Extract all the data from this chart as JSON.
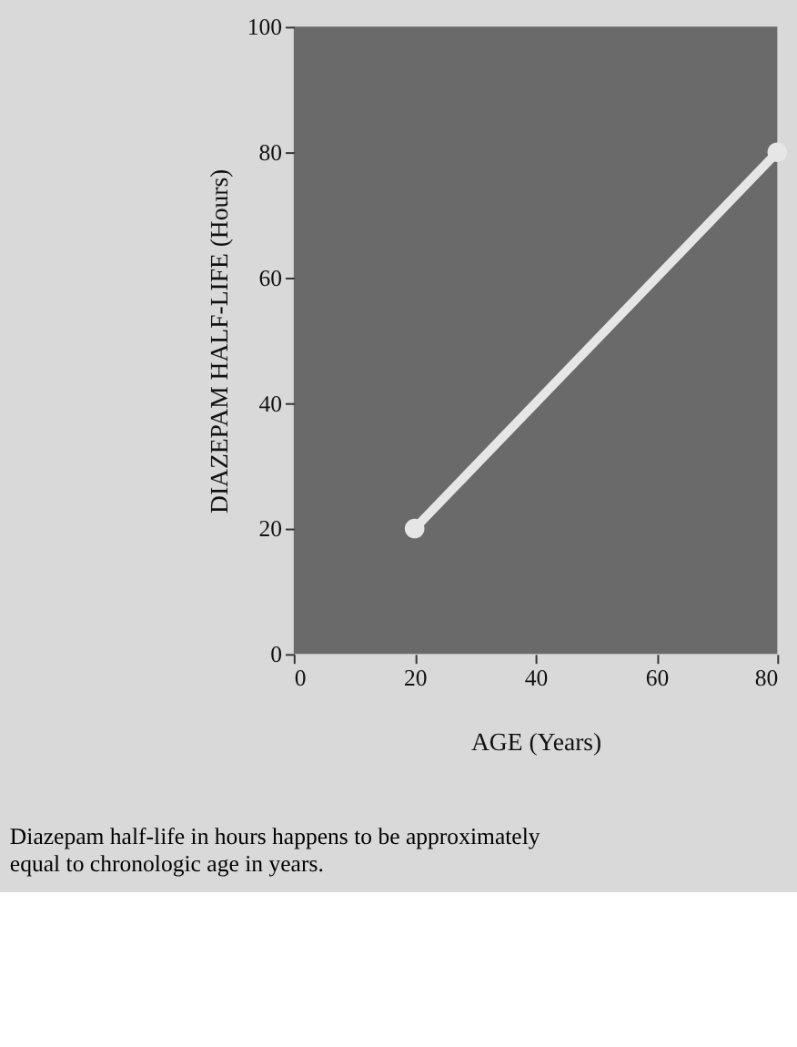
{
  "chart_data": {
    "type": "line",
    "xlabel": "AGE (Years)",
    "ylabel": "DIAZEPAM HALF-LIFE (Hours)",
    "x": [
      20,
      80
    ],
    "series": [
      {
        "color": "#e6e6e6",
        "values": [
          20,
          80
        ]
      }
    ],
    "xlim": [
      0,
      80
    ],
    "xticks": [
      0,
      20,
      40,
      60,
      80
    ],
    "ylim": [
      0,
      100
    ],
    "yticks": [
      0,
      20,
      40,
      60,
      80,
      100
    ],
    "grid": false,
    "legend": false,
    "marker": "circle",
    "line_style": "solid",
    "annotations": [
      "Diazepam half-life in hours happens to be approximately equal to chronologic age in years."
    ]
  }
}
